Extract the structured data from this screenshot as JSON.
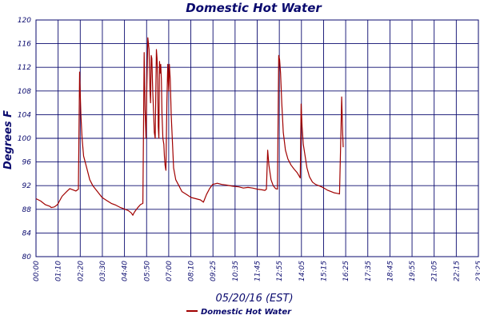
{
  "chart_data": {
    "type": "line",
    "title": "Domestic Hot Water",
    "xlabel": "05/20/16 (EST)",
    "ylabel": "Degrees F",
    "ylim": [
      80,
      120
    ],
    "yticks": [
      "80",
      "84",
      "88",
      "92",
      "96",
      "100",
      "104",
      "108",
      "112",
      "116",
      "120"
    ],
    "xticks": [
      "00:00",
      "01:10",
      "02:20",
      "03:30",
      "04:40",
      "05:50",
      "07:00",
      "08:10",
      "09:25",
      "10:35",
      "11:45",
      "12:55",
      "14:05",
      "15:15",
      "16:25",
      "17:35",
      "18:45",
      "19:55",
      "21:05",
      "22:15",
      "23:25"
    ],
    "xlim_minutes": [
      0,
      1440
    ],
    "grid": true,
    "legend_position": "bottom-left",
    "series": [
      {
        "name": "Domestic Hot Water",
        "color": "#a00000",
        "points": [
          [
            0,
            89.8
          ],
          [
            15,
            89.4
          ],
          [
            30,
            88.8
          ],
          [
            45,
            88.5
          ],
          [
            50,
            88.3
          ],
          [
            60,
            88.4
          ],
          [
            70,
            88.8
          ],
          [
            85,
            90.2
          ],
          [
            100,
            91.0
          ],
          [
            110,
            91.5
          ],
          [
            120,
            91.3
          ],
          [
            130,
            91.1
          ],
          [
            138,
            91.4
          ],
          [
            142,
            111.2
          ],
          [
            146,
            104
          ],
          [
            150,
            100
          ],
          [
            155,
            97
          ],
          [
            165,
            95
          ],
          [
            175,
            93
          ],
          [
            185,
            92
          ],
          [
            200,
            91
          ],
          [
            215,
            90
          ],
          [
            230,
            89.5
          ],
          [
            245,
            89
          ],
          [
            260,
            88.7
          ],
          [
            275,
            88.3
          ],
          [
            290,
            88
          ],
          [
            300,
            87.8
          ],
          [
            310,
            87.4
          ],
          [
            315,
            87.0
          ],
          [
            320,
            87.5
          ],
          [
            330,
            88.2
          ],
          [
            340,
            88.8
          ],
          [
            348,
            89
          ],
          [
            352,
            114.5
          ],
          [
            355,
            105
          ],
          [
            358,
            100
          ],
          [
            361,
            109
          ],
          [
            364,
            117.0
          ],
          [
            368,
            115
          ],
          [
            371,
            108
          ],
          [
            373,
            106
          ],
          [
            375,
            114
          ],
          [
            377,
            113.5
          ],
          [
            380,
            108
          ],
          [
            383,
            104
          ],
          [
            385,
            101
          ],
          [
            388,
            100
          ],
          [
            390,
            108
          ],
          [
            392,
            115
          ],
          [
            394,
            113.5
          ],
          [
            396,
            110
          ],
          [
            398,
            102
          ],
          [
            400,
            100
          ],
          [
            402,
            113
          ],
          [
            404,
            111
          ],
          [
            406,
            112.5
          ],
          [
            408,
            110
          ],
          [
            410,
            104
          ],
          [
            413,
            100
          ],
          [
            416,
            99
          ],
          [
            418,
            97
          ],
          [
            420,
            95.5
          ],
          [
            423,
            94.6
          ],
          [
            426,
            106
          ],
          [
            429,
            112.5
          ],
          [
            432,
            108
          ],
          [
            434,
            112.5
          ],
          [
            437,
            110
          ],
          [
            440,
            104
          ],
          [
            444,
            99.5
          ],
          [
            448,
            95
          ],
          [
            455,
            93
          ],
          [
            465,
            92
          ],
          [
            475,
            91
          ],
          [
            490,
            90.5
          ],
          [
            505,
            90
          ],
          [
            520,
            89.8
          ],
          [
            535,
            89.6
          ],
          [
            545,
            89.2
          ],
          [
            555,
            90.5
          ],
          [
            565,
            91.5
          ],
          [
            575,
            92.2
          ],
          [
            590,
            92.4
          ],
          [
            605,
            92.2
          ],
          [
            620,
            92.1
          ],
          [
            640,
            91.9
          ],
          [
            660,
            91.8
          ],
          [
            675,
            91.6
          ],
          [
            690,
            91.7
          ],
          [
            705,
            91.6
          ],
          [
            720,
            91.4
          ],
          [
            735,
            91.3
          ],
          [
            745,
            91.2
          ],
          [
            750,
            91.4
          ],
          [
            754,
            98.0
          ],
          [
            758,
            95.5
          ],
          [
            765,
            93
          ],
          [
            772,
            92
          ],
          [
            780,
            91.5
          ],
          [
            786,
            91.4
          ],
          [
            790,
            114.0
          ],
          [
            793,
            113.3
          ],
          [
            796,
            111
          ],
          [
            800,
            106
          ],
          [
            805,
            101
          ],
          [
            812,
            98
          ],
          [
            820,
            96.5
          ],
          [
            830,
            95.5
          ],
          [
            840,
            94.8
          ],
          [
            850,
            94.2
          ],
          [
            858,
            93.5
          ],
          [
            860,
            93.3
          ],
          [
            863,
            105.8
          ],
          [
            866,
            102
          ],
          [
            870,
            99
          ],
          [
            876,
            97
          ],
          [
            882,
            95
          ],
          [
            890,
            93.5
          ],
          [
            900,
            92.6
          ],
          [
            910,
            92.2
          ],
          [
            920,
            92.0
          ],
          [
            930,
            91.8
          ],
          [
            940,
            91.5
          ],
          [
            950,
            91.2
          ],
          [
            960,
            91.0
          ],
          [
            970,
            90.8
          ],
          [
            980,
            90.7
          ],
          [
            988,
            90.6
          ],
          [
            992,
            100
          ],
          [
            995,
            107.0
          ],
          [
            998,
            101
          ],
          [
            1000,
            98.5
          ]
        ]
      }
    ]
  }
}
